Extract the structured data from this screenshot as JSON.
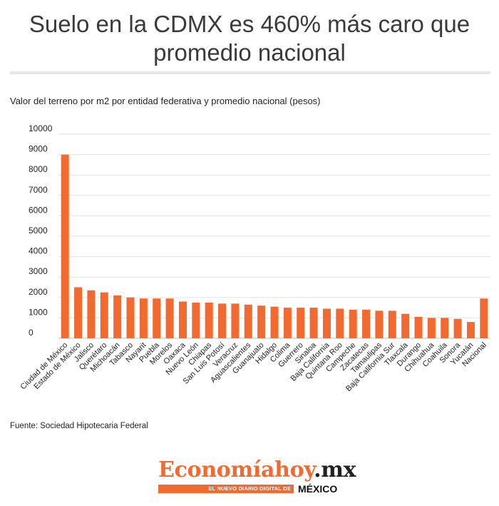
{
  "header": {
    "title": "Suelo en la CDMX es 460% más caro que promedio nacional"
  },
  "subtitle": "Valor del terreno por m2 por entidad federativa y promedio nacional (pesos)",
  "source": "Fuente: Sociedad Hipotecaria Federal",
  "logo": {
    "word_part1": "Economía",
    "word_part2": "hoy",
    "word_part3": ".mx",
    "tagline": "EL NUEVO DIARIO DIGITAL DE",
    "country": "MÉXICO"
  },
  "colors": {
    "bar": "#f26a30",
    "grid": "#e2e2e2",
    "text": "#222222"
  },
  "chart_data": {
    "type": "bar",
    "title": "Suelo en la CDMX es 460% más caro que promedio nacional",
    "subtitle": "Valor del terreno por m2 por entidad federativa y promedio nacional (pesos)",
    "xlabel": "",
    "ylabel": "",
    "ylim": [
      0,
      10000
    ],
    "yticks": [
      0,
      1000,
      2000,
      3000,
      4000,
      5000,
      6000,
      7000,
      8000,
      9000,
      10000
    ],
    "grid": true,
    "legend": "none",
    "categories": [
      "Ciudad de México",
      "Estado de México",
      "Jalisco",
      "Querétaro",
      "Michoacán",
      "Tabasco",
      "Nayarit",
      "Puebla",
      "Morelos",
      "Oaxaca",
      "Nuevo León",
      "Chiapas",
      "San Luis Potosí",
      "Veracruz",
      "Aguascalientes",
      "Guanajuato",
      "Hidalgo",
      "Colima",
      "Guerrero",
      "Sinaloa",
      "Baja California",
      "Quintana Roo",
      "Campeche",
      "Zacatecas",
      "Tamaulipas",
      "Baja California Sur",
      "Tlaxcala",
      "Durango",
      "Chihuahua",
      "Coahuila",
      "Sonora",
      "Yucatán",
      "Nacional"
    ],
    "values": [
      9000,
      2500,
      2350,
      2250,
      2100,
      2000,
      1950,
      1950,
      1950,
      1800,
      1750,
      1750,
      1700,
      1700,
      1650,
      1600,
      1550,
      1500,
      1500,
      1500,
      1450,
      1450,
      1400,
      1400,
      1350,
      1350,
      1200,
      1050,
      1000,
      1000,
      950,
      800,
      1950
    ]
  }
}
